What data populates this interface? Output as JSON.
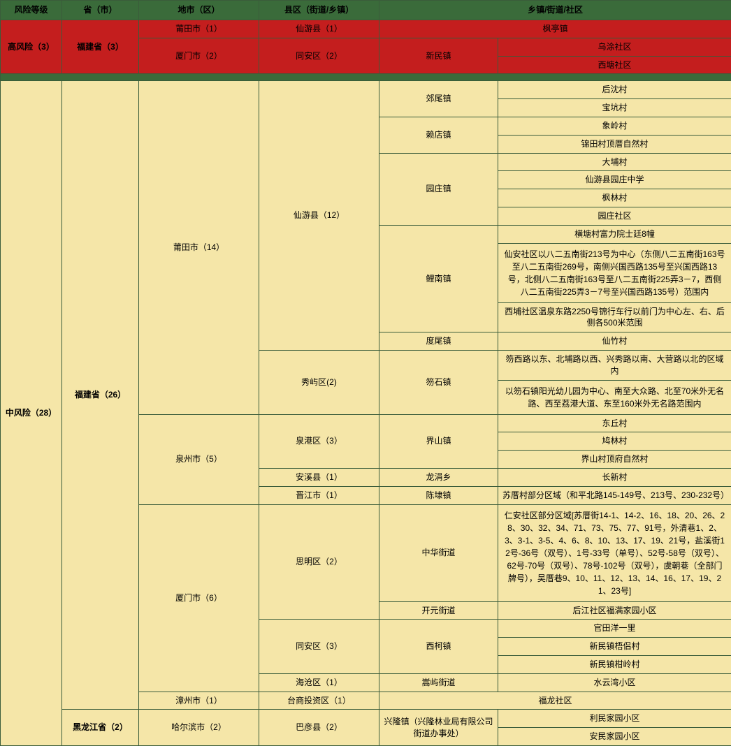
{
  "headers": {
    "risk": "风险等级",
    "province": "省（市）",
    "city": "地市（区）",
    "county": "县区（街道/乡镇）",
    "town_community": "乡镇/街道/社区"
  },
  "high": {
    "risk_label": "高风险（3）",
    "province": "福建省（3）",
    "rows": [
      {
        "city": "莆田市（1）",
        "county": "仙游县（1）",
        "town": "枫亭镇"
      },
      {
        "city": "厦门市（2）",
        "county": "同安区（2）",
        "town": "新民镇",
        "communities": [
          "乌涂社区",
          "西塘社区"
        ]
      }
    ]
  },
  "mid": {
    "risk_label": "中风险（28）",
    "provinces": [
      {
        "name": "福建省（26）",
        "cities": [
          {
            "name": "莆田市（14）",
            "counties": [
              {
                "name": "仙游县（12）",
                "towns": [
                  {
                    "name": "郊尾镇",
                    "communities": [
                      "后沈村",
                      "宝坑村"
                    ]
                  },
                  {
                    "name": "赖店镇",
                    "communities": [
                      "象岭村",
                      "锦田村顶厝自然村"
                    ]
                  },
                  {
                    "name": "园庄镇",
                    "communities": [
                      "大埔村",
                      "仙游县园庄中学",
                      "枫林村",
                      "园庄社区"
                    ]
                  },
                  {
                    "name": "鲤南镇",
                    "communities": [
                      "横塘村富力院士廷8幢",
                      "仙安社区以八二五南街213号为中心（东侧八二五南街163号至八二五南街269号，南侧兴国西路135号至兴国西路13号，北侧八二五南街163号至八二五南街225弄3－7，西侧八二五南街225弄3－7号至兴国西路135号）范围内",
                      "西埔社区温泉东路2250号锦行车行以前门为中心左、右、后侧各500米范围"
                    ]
                  },
                  {
                    "name": "度尾镇",
                    "communities": [
                      "仙竹村"
                    ]
                  }
                ]
              },
              {
                "name": "秀屿区(2)",
                "towns": [
                  {
                    "name": "笏石镇",
                    "communities": [
                      "笏西路以东、北埔路以西、兴秀路以南、大营路以北的区域内",
                      "以笏石镇阳光幼儿园为中心、南至大众路、北至70米外无名路、西至荔港大道、东至160米外无名路范围内"
                    ]
                  }
                ]
              }
            ]
          },
          {
            "name": "泉州市（5）",
            "counties": [
              {
                "name": "泉港区（3）",
                "towns": [
                  {
                    "name": "界山镇",
                    "communities": [
                      "东丘村",
                      "鸠林村",
                      "界山村顶府自然村"
                    ]
                  }
                ]
              },
              {
                "name": "安溪县（1）",
                "towns": [
                  {
                    "name": "龙涓乡",
                    "communities": [
                      "长新村"
                    ]
                  }
                ]
              },
              {
                "name": "晋江市（1）",
                "towns": [
                  {
                    "name": "陈埭镇",
                    "communities": [
                      "苏厝村部分区域（和平北路145-149号、213号、230-232号）"
                    ]
                  }
                ]
              }
            ]
          },
          {
            "name": "厦门市（6）",
            "counties": [
              {
                "name": "思明区（2）",
                "towns": [
                  {
                    "name": "中华街道",
                    "communities": [
                      "仁安社区部分区域[苏厝街14-1、14-2、16、18、20、26、28、30、32、34、71、73、75、77、91号，外清巷1、2、3、3-1、3-5、4、6、8、10、13、17、19、21号，盐溪街12号-36号（双号）、1号-33号（单号）、52号-58号（双号）、62号-70号（双号）、78号-102号（双号），虞朝巷（全部门牌号），吴厝巷9、10、11、12、13、14、16、17、19、21、23号]"
                    ]
                  },
                  {
                    "name": "开元街道",
                    "communities": [
                      "后江社区福满家园小区"
                    ]
                  }
                ]
              },
              {
                "name": "同安区（3）",
                "towns": [
                  {
                    "name": "西柯镇",
                    "communities": [
                      "官田洋一里",
                      "新民镇梧侣村",
                      "新民镇柑岭村"
                    ]
                  }
                ]
              },
              {
                "name": "海沧区（1）",
                "towns": [
                  {
                    "name": "嵩屿街道",
                    "communities": [
                      "水云湾小区"
                    ]
                  }
                ]
              }
            ]
          },
          {
            "name": "漳州市（1）",
            "counties": [
              {
                "name": "台商投资区（1）",
                "towns": [
                  {
                    "name_span": "福龙社区"
                  }
                ]
              }
            ]
          }
        ]
      },
      {
        "name": "黑龙江省（2）",
        "cities": [
          {
            "name": "哈尔滨市（2）",
            "counties": [
              {
                "name": "巴彦县（2）",
                "towns": [
                  {
                    "name": "兴隆镇（兴隆林业局有限公司街道办事处）",
                    "communities": [
                      "利民家园小区",
                      "安民家园小区"
                    ]
                  }
                ]
              }
            ]
          }
        ]
      }
    ]
  }
}
